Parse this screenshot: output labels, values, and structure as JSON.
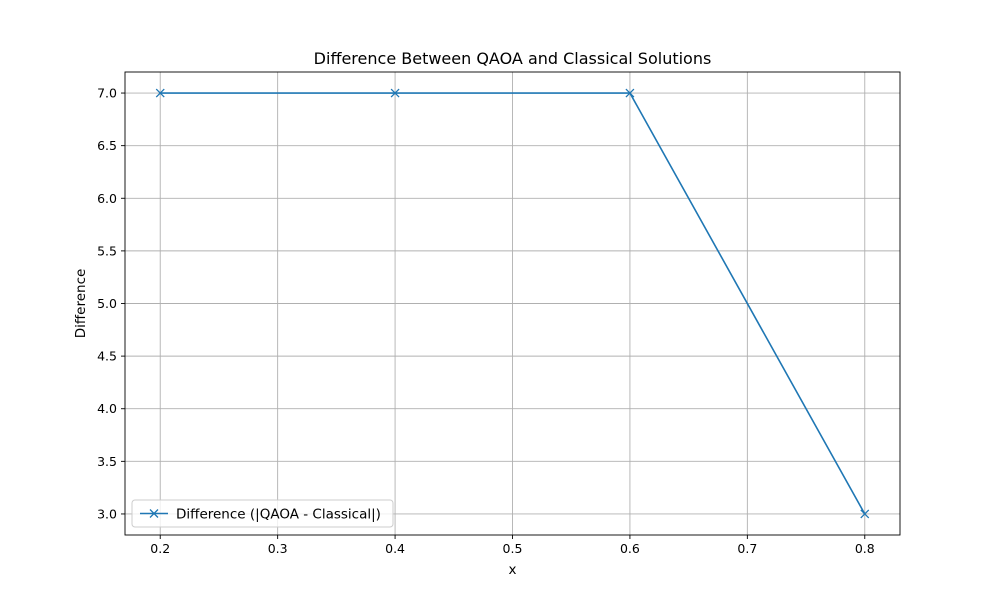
{
  "chart_data": {
    "type": "line",
    "title": "Difference Between QAOA and Classical Solutions",
    "xlabel": "x",
    "ylabel": "Difference",
    "x": [
      0.2,
      0.4,
      0.6,
      0.8
    ],
    "series": [
      {
        "name": "Difference (|QAOA - Classical|)",
        "values": [
          7.0,
          7.0,
          7.0,
          3.0
        ],
        "color": "#1f77b4",
        "marker": "x"
      }
    ],
    "xlim": [
      0.17,
      0.83
    ],
    "ylim": [
      2.8,
      7.2
    ],
    "xticks": [
      "0.2",
      "0.3",
      "0.4",
      "0.5",
      "0.6",
      "0.7",
      "0.8"
    ],
    "yticks": [
      "3.0",
      "3.5",
      "4.0",
      "4.5",
      "5.0",
      "5.5",
      "6.0",
      "6.5",
      "7.0"
    ],
    "grid": true,
    "legend_position": "lower-left"
  }
}
